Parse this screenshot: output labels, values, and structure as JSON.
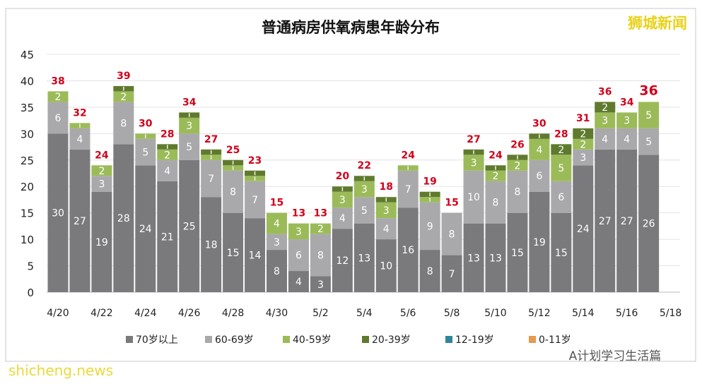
{
  "logo": "狮城新闻",
  "watermarks": [
    "shicheng.news",
    "A计划学习生活篇"
  ],
  "colors": {
    "70岁以上": "#7a797b",
    "60-69岁": "#a9a9ab",
    "40-59岁": "#9bbb59",
    "20-39岁": "#5f7a2e",
    "12-19岁": "#31859c",
    "0-11岁": "#e59a4f",
    "total_label": "#d0021b"
  },
  "chart_data": {
    "type": "bar",
    "stacked": true,
    "title": "普通病房供氧病患年龄分布",
    "categories": [
      "4/20",
      "4/21",
      "4/22",
      "4/23",
      "4/24",
      "4/25",
      "4/26",
      "4/27",
      "4/28",
      "4/29",
      "4/30",
      "5/1",
      "5/2",
      "5/3",
      "5/4",
      "5/5",
      "5/6",
      "5/7",
      "5/8",
      "5/9",
      "5/10",
      "5/11",
      "5/12",
      "5/13",
      "5/14",
      "5/15",
      "5/16",
      "5/17"
    ],
    "x_tick_labels": [
      "4/20",
      "4/22",
      "4/24",
      "4/26",
      "4/28",
      "4/30",
      "5/2",
      "5/4",
      "5/6",
      "5/8",
      "5/10",
      "5/12",
      "5/14",
      "5/16",
      "5/18"
    ],
    "series": [
      {
        "name": "70岁以上",
        "values": [
          30,
          27,
          19,
          28,
          24,
          21,
          25,
          18,
          15,
          14,
          8,
          4,
          3,
          12,
          13,
          10,
          16,
          8,
          7,
          13,
          13,
          15,
          19,
          15,
          24,
          27,
          27,
          26
        ]
      },
      {
        "name": "60-69岁",
        "values": [
          6,
          4,
          3,
          8,
          5,
          4,
          5,
          7,
          8,
          7,
          3,
          6,
          8,
          4,
          5,
          4,
          7,
          9,
          8,
          10,
          8,
          8,
          6,
          6,
          3,
          4,
          4,
          5
        ]
      },
      {
        "name": "40-59岁",
        "values": [
          2,
          1,
          2,
          2,
          1,
          2,
          3,
          1,
          1,
          1,
          4,
          3,
          2,
          3,
          3,
          3,
          1,
          1,
          0,
          3,
          2,
          2,
          4,
          5,
          2,
          3,
          3,
          5
        ]
      },
      {
        "name": "20-39岁",
        "values": [
          0,
          0,
          0,
          1,
          0,
          1,
          1,
          1,
          1,
          1,
          0,
          0,
          0,
          1,
          1,
          1,
          0,
          1,
          0,
          1,
          1,
          1,
          1,
          2,
          2,
          2,
          0,
          0
        ]
      },
      {
        "name": "12-19岁",
        "values": [
          0,
          0,
          0,
          0,
          0,
          0,
          0,
          0,
          0,
          0,
          0,
          0,
          0,
          0,
          0,
          0,
          0,
          0,
          0,
          0,
          0,
          0,
          0,
          0,
          0,
          0,
          0,
          0
        ]
      },
      {
        "name": "0-11岁",
        "values": [
          0,
          0,
          0,
          0,
          0,
          0,
          0,
          0,
          0,
          0,
          0,
          0,
          0,
          0,
          0,
          0,
          0,
          0,
          0,
          0,
          0,
          0,
          0,
          0,
          0,
          0,
          0,
          0
        ]
      }
    ],
    "totals": [
      38,
      32,
      24,
      39,
      30,
      28,
      34,
      27,
      25,
      23,
      15,
      13,
      13,
      20,
      22,
      18,
      24,
      19,
      15,
      27,
      24,
      26,
      30,
      28,
      31,
      36,
      34,
      36
    ],
    "ylim": [
      0,
      45
    ],
    "y_ticks": [
      0,
      5,
      10,
      15,
      20,
      25,
      30,
      35,
      40,
      45
    ],
    "grid": true,
    "legend_position": "bottom"
  }
}
